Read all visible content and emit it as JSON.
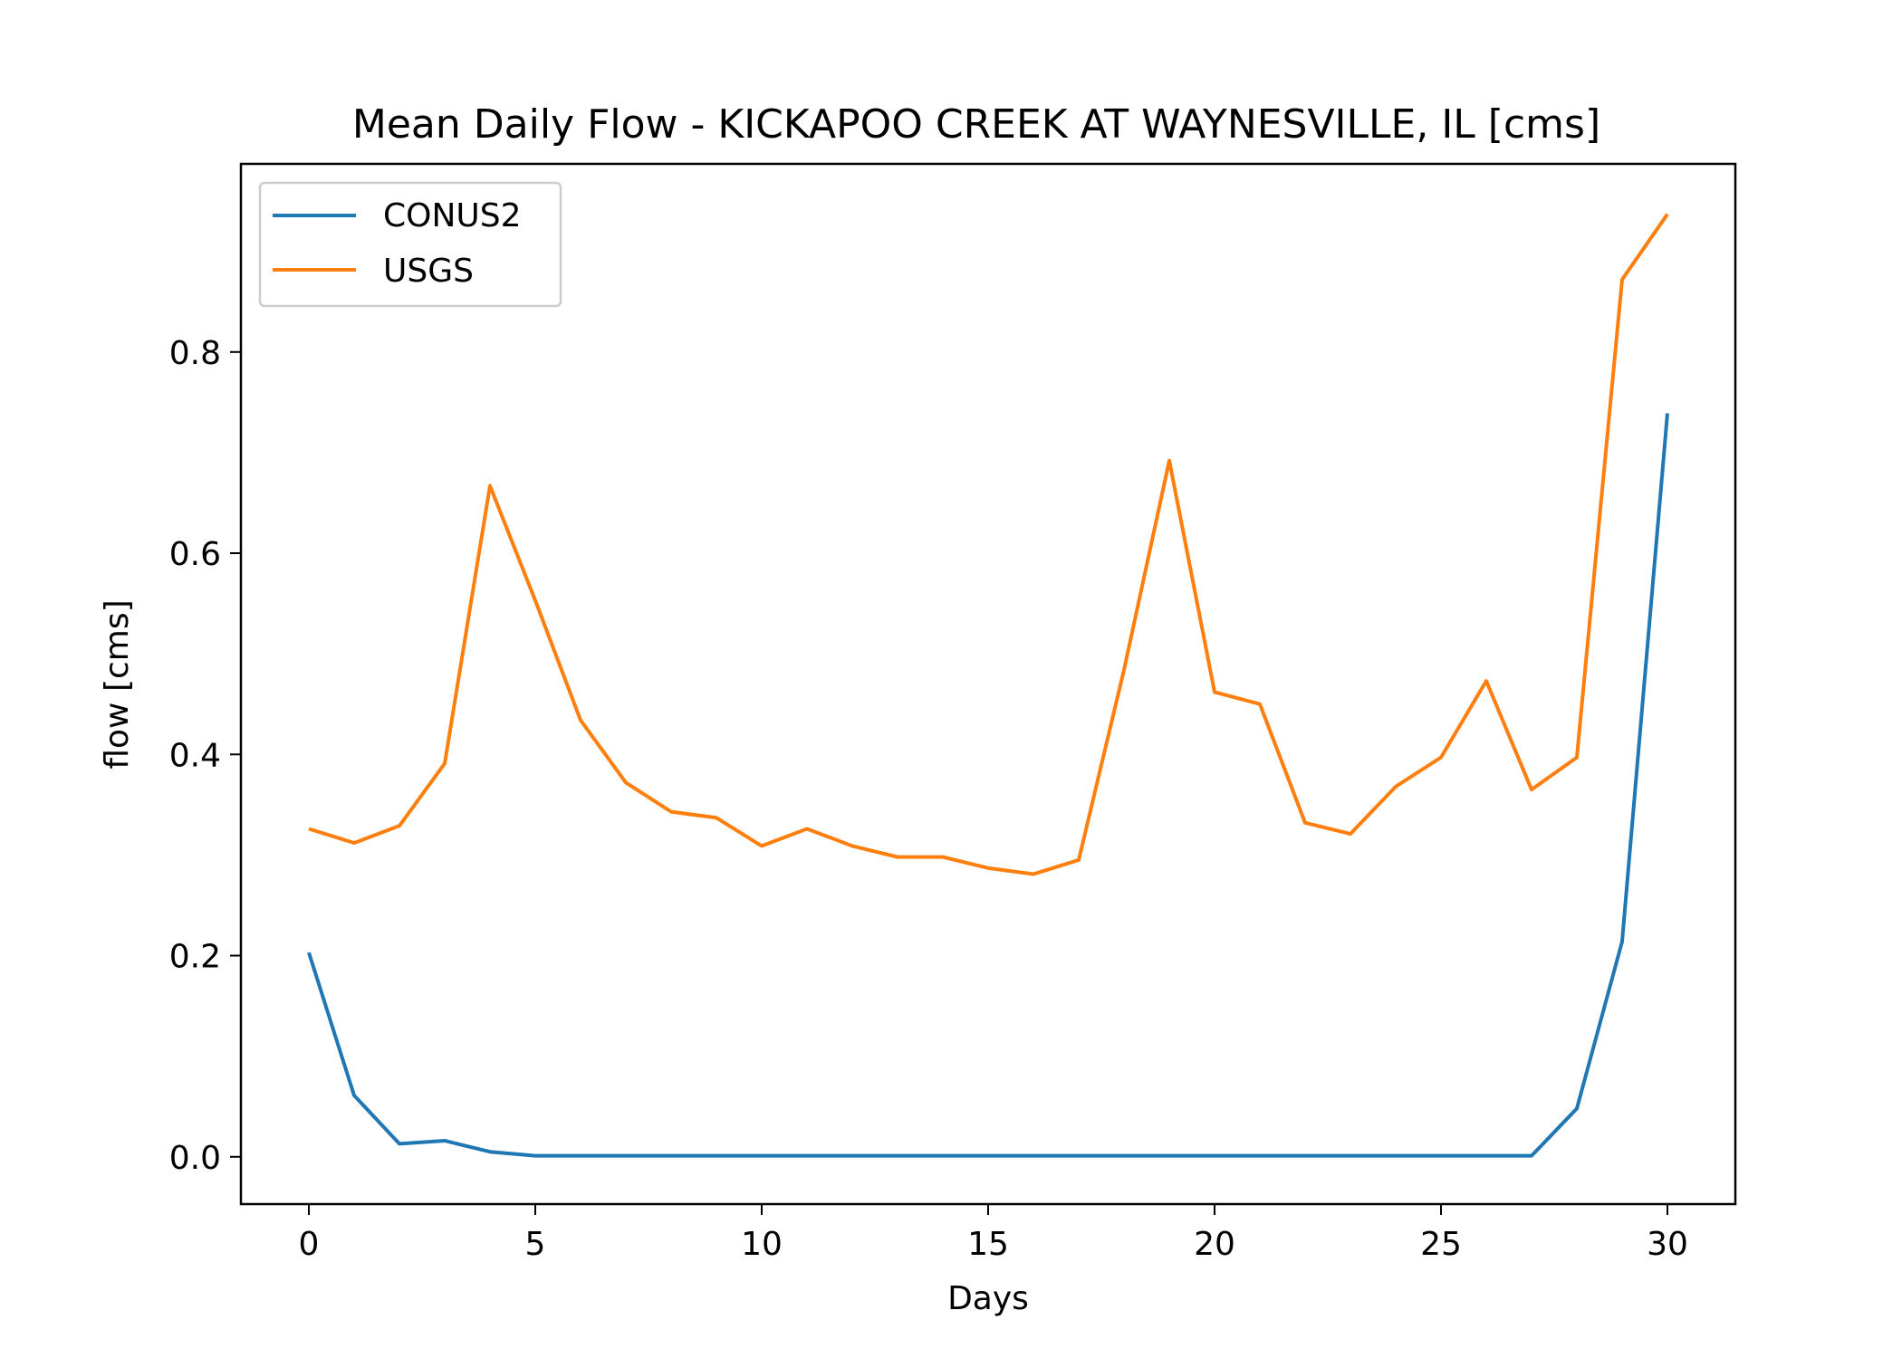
{
  "chart_data": {
    "type": "line",
    "title": "Mean Daily Flow - KICKAPOO CREEK AT WAYNESVILLE, IL [cms]",
    "xlabel": "Days",
    "ylabel": "flow [cms]",
    "xlim": [
      -1.5,
      31.5
    ],
    "ylim": [
      -0.047,
      0.987
    ],
    "xticks": [
      0,
      5,
      10,
      15,
      20,
      25,
      30
    ],
    "xtick_labels": [
      "0",
      "5",
      "10",
      "15",
      "20",
      "25",
      "30"
    ],
    "yticks": [
      0.0,
      0.2,
      0.4,
      0.6,
      0.8
    ],
    "ytick_labels": [
      "0.0",
      "0.2",
      "0.4",
      "0.6",
      "0.8"
    ],
    "grid": false,
    "legend_position": "top-left",
    "x": [
      0,
      1,
      2,
      3,
      4,
      5,
      6,
      7,
      8,
      9,
      10,
      11,
      12,
      13,
      14,
      15,
      16,
      17,
      18,
      19,
      20,
      21,
      22,
      23,
      24,
      25,
      26,
      27,
      28,
      29,
      30
    ],
    "series": [
      {
        "name": "CONUS2",
        "color": "#1f77b4",
        "values": [
          0.203,
          0.061,
          0.013,
          0.016,
          0.005,
          0.001,
          0.001,
          0.001,
          0.001,
          0.001,
          0.001,
          0.001,
          0.001,
          0.001,
          0.001,
          0.001,
          0.001,
          0.001,
          0.001,
          0.001,
          0.001,
          0.001,
          0.001,
          0.001,
          0.001,
          0.001,
          0.001,
          0.001,
          0.048,
          0.214,
          0.739
        ]
      },
      {
        "name": "USGS",
        "color": "#ff7f0e",
        "values": [
          0.326,
          0.312,
          0.329,
          0.391,
          0.667,
          0.553,
          0.434,
          0.372,
          0.343,
          0.337,
          0.309,
          0.326,
          0.309,
          0.298,
          0.298,
          0.287,
          0.281,
          0.295,
          0.484,
          0.692,
          0.462,
          0.45,
          0.332,
          0.321,
          0.368,
          0.397,
          0.473,
          0.365,
          0.397,
          0.872,
          0.937
        ]
      }
    ]
  }
}
